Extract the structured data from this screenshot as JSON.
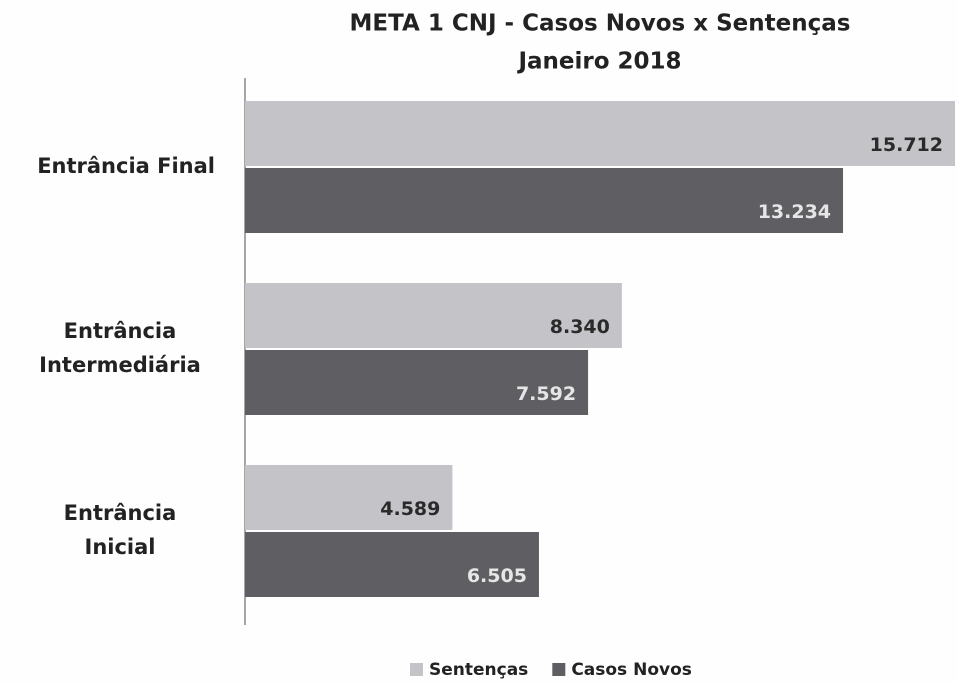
{
  "chart_data": {
    "type": "bar",
    "orientation": "horizontal",
    "title": "META 1 CNJ - Casos Novos x Sentenças",
    "subtitle": "Janeiro 2018",
    "categories": [
      "Entrância Final",
      "Entrância Intermediária",
      "Entrância Inicial"
    ],
    "series": [
      {
        "name": "Sentenças",
        "color": "#c4c3c8",
        "values": [
          15712,
          8340,
          4589
        ],
        "value_labels": [
          "15.712",
          "8.340",
          "4.589"
        ]
      },
      {
        "name": "Casos Novos",
        "color": "#5f5e62",
        "values": [
          13234,
          7592,
          6505
        ],
        "value_labels": [
          "13.234",
          "7.592",
          "6.505"
        ]
      }
    ],
    "legend": "bottom"
  }
}
